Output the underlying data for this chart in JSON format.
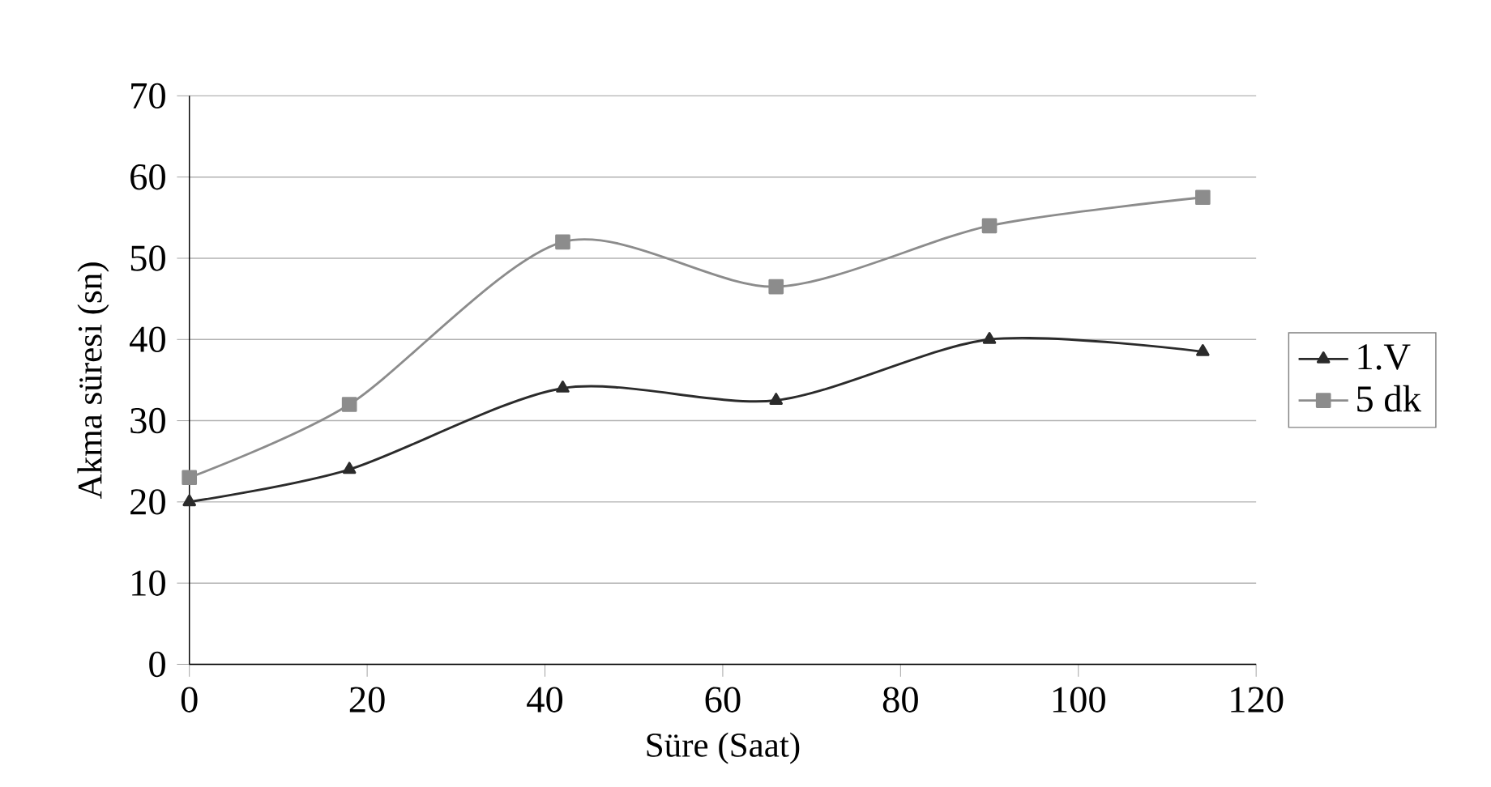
{
  "chart_data": {
    "type": "line",
    "xlabel": "Süre (Saat)",
    "ylabel": "Akma süresi (sn)",
    "x": [
      0,
      18,
      42,
      66,
      90,
      114
    ],
    "series": [
      {
        "name": "1.V",
        "color": "#2b2b2b",
        "marker": "triangle",
        "values": [
          20,
          24,
          34,
          32.5,
          40,
          38.5
        ]
      },
      {
        "name": "5 dk",
        "color": "#8c8c8c",
        "marker": "square",
        "values": [
          23,
          32,
          52,
          46.5,
          54,
          57.5
        ]
      }
    ],
    "xlim": [
      0,
      120
    ],
    "xticks": [
      0,
      20,
      40,
      60,
      80,
      100,
      120
    ],
    "ylim": [
      0,
      70
    ],
    "yticks": [
      0,
      10,
      20,
      30,
      40,
      50,
      60,
      70
    ],
    "grid": "y",
    "legend": "right"
  }
}
